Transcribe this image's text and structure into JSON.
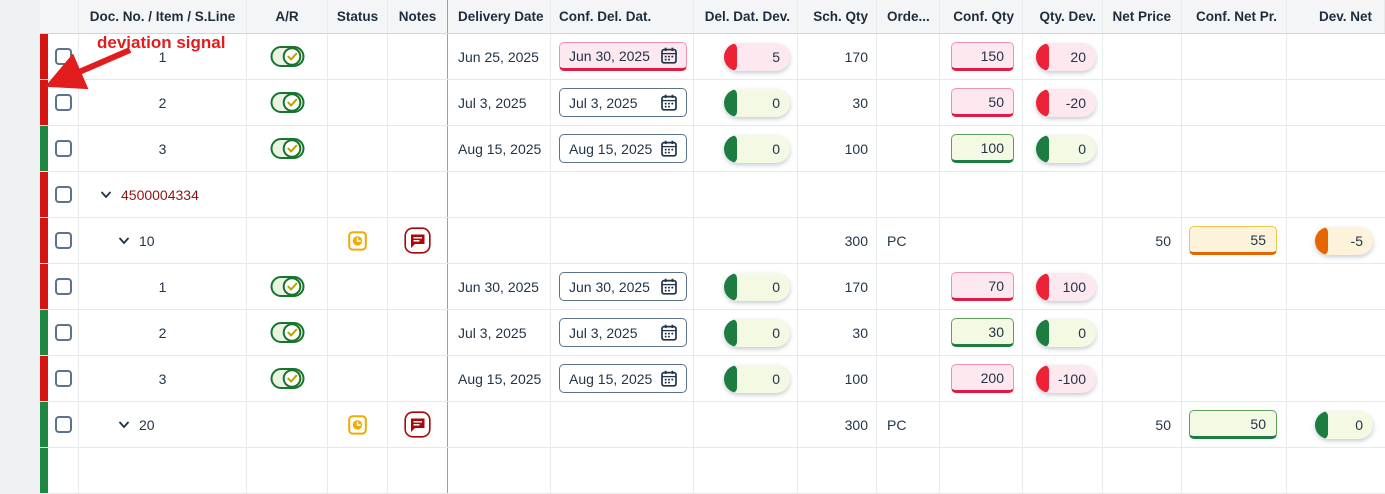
{
  "annotation": {
    "label": "deviation signal"
  },
  "columns": [
    {
      "key": "doc",
      "label": "Doc. No. / Item / S.Line",
      "align": "center"
    },
    {
      "key": "ar",
      "label": "A/R",
      "align": "center"
    },
    {
      "key": "status",
      "label": "Status",
      "align": "center"
    },
    {
      "key": "notes",
      "label": "Notes",
      "align": "center"
    },
    {
      "key": "delivery",
      "label": "Delivery Date",
      "align": "left"
    },
    {
      "key": "confdel",
      "label": "Conf. Del. Dat.",
      "align": "left"
    },
    {
      "key": "deldev",
      "label": "Del. Dat. Dev.",
      "align": "right"
    },
    {
      "key": "schqty",
      "label": "Sch. Qty",
      "align": "right"
    },
    {
      "key": "order",
      "label": "Orde...",
      "align": "left"
    },
    {
      "key": "confqty",
      "label": "Conf. Qty",
      "align": "right"
    },
    {
      "key": "qtydev",
      "label": "Qty. Dev.",
      "align": "right"
    },
    {
      "key": "netprice",
      "label": "Net Price",
      "align": "right"
    },
    {
      "key": "confnet",
      "label": "Conf. Net Pr.",
      "align": "right"
    },
    {
      "key": "devnet",
      "label": "Dev. Net",
      "align": "right"
    }
  ],
  "rows": [
    {
      "kind": "sline",
      "signal": "negative",
      "label": "1",
      "accepted": true,
      "delivery_date": "Jun 25, 2025",
      "conf_del_date": "Jun 30, 2025",
      "conf_del_state": "error",
      "del_dev": "5",
      "del_dev_state": "negative",
      "sch_qty": "170",
      "conf_qty": "150",
      "conf_qty_state": "error",
      "qty_dev": "20",
      "qty_dev_state": "negative"
    },
    {
      "kind": "sline",
      "signal": "negative",
      "label": "2",
      "accepted": true,
      "delivery_date": "Jul 3, 2025",
      "conf_del_date": "Jul 3, 2025",
      "conf_del_state": "neutral",
      "del_dev": "0",
      "del_dev_state": "positive",
      "sch_qty": "30",
      "conf_qty": "50",
      "conf_qty_state": "error",
      "qty_dev": "-20",
      "qty_dev_state": "negative"
    },
    {
      "kind": "sline",
      "signal": "positive",
      "label": "3",
      "accepted": true,
      "delivery_date": "Aug 15, 2025",
      "conf_del_date": "Aug 15, 2025",
      "conf_del_state": "neutral",
      "del_dev": "0",
      "del_dev_state": "positive",
      "sch_qty": "100",
      "conf_qty": "100",
      "conf_qty_state": "success",
      "qty_dev": "0",
      "qty_dev_state": "positive"
    },
    {
      "kind": "doc",
      "signal": "negative",
      "label": "4500004334",
      "expanded": true
    },
    {
      "kind": "item",
      "signal": "negative",
      "label": "10",
      "expanded": true,
      "status_icon": "pending-clock",
      "notes_icon": "comment",
      "sch_qty": "300",
      "order_unit": "PC",
      "net_price": "50",
      "conf_net_price": "55",
      "conf_net_state": "warning",
      "net_dev": "-5",
      "net_dev_state": "warning"
    },
    {
      "kind": "sline",
      "signal": "negative",
      "label": "1",
      "accepted": true,
      "delivery_date": "Jun 30, 2025",
      "conf_del_date": "Jun 30, 2025",
      "conf_del_state": "neutral",
      "del_dev": "0",
      "del_dev_state": "positive",
      "sch_qty": "170",
      "conf_qty": "70",
      "conf_qty_state": "error",
      "qty_dev": "100",
      "qty_dev_state": "negative"
    },
    {
      "kind": "sline",
      "signal": "positive",
      "label": "2",
      "accepted": true,
      "delivery_date": "Jul 3, 2025",
      "conf_del_date": "Jul 3, 2025",
      "conf_del_state": "neutral",
      "del_dev": "0",
      "del_dev_state": "positive",
      "sch_qty": "30",
      "conf_qty": "30",
      "conf_qty_state": "success",
      "qty_dev": "0",
      "qty_dev_state": "positive"
    },
    {
      "kind": "sline",
      "signal": "negative",
      "label": "3",
      "accepted": true,
      "delivery_date": "Aug 15, 2025",
      "conf_del_date": "Aug 15, 2025",
      "conf_del_state": "neutral",
      "del_dev": "0",
      "del_dev_state": "positive",
      "sch_qty": "100",
      "conf_qty": "200",
      "conf_qty_state": "error",
      "qty_dev": "-100",
      "qty_dev_state": "negative"
    },
    {
      "kind": "item",
      "signal": "positive",
      "label": "20",
      "expanded": true,
      "status_icon": "pending-clock",
      "notes_icon": "comment",
      "sch_qty": "300",
      "order_unit": "PC",
      "net_price": "50",
      "conf_net_price": "50",
      "conf_net_state": "success",
      "net_dev": "0",
      "net_dev_state": "positive"
    },
    {
      "kind": "partial",
      "signal": "positive"
    }
  ],
  "icons": {
    "ar": "accept-toggle-icon",
    "status": "pending-clock-icon",
    "notes": "comment-icon",
    "date_picker": "calendar-icon",
    "expand": "chevron-down-icon"
  },
  "colors": {
    "signal_negative": "#d51414",
    "signal_positive": "#1d8741",
    "error_accent": "#df1b45",
    "success_accent": "#1d7c3f",
    "warning_accent": "#e76500",
    "badge_negative_bg": "#fde8ef",
    "badge_positive_bg": "#f3f9e2",
    "badge_warning_bg": "#fcf3da",
    "annotation_red": "#e21d1d",
    "doc_link": "#911414"
  }
}
